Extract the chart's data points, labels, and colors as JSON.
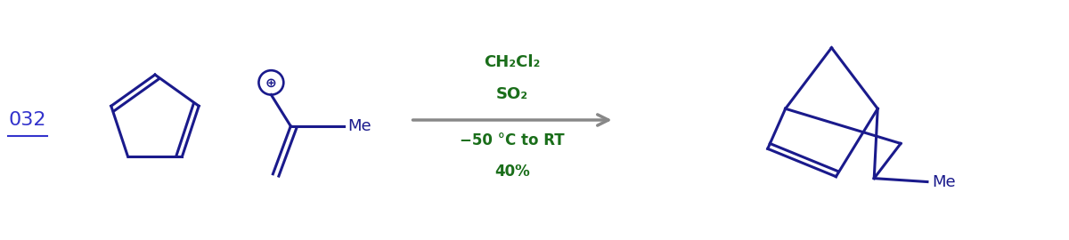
{
  "background_color": "#ffffff",
  "mol_color": "#1a1a8c",
  "reagent_color": "#1a6e1a",
  "label_color": "#3333cc",
  "label_text": "032",
  "reagent_line1": "CH₂Cl₂",
  "reagent_line2": "SO₂",
  "condition_line1": "−50 °C to RT",
  "condition_line2": "40%",
  "me_label": "Me",
  "plus_symbol": "⊕",
  "figsize": [
    12.0,
    2.7
  ],
  "dpi": 100
}
